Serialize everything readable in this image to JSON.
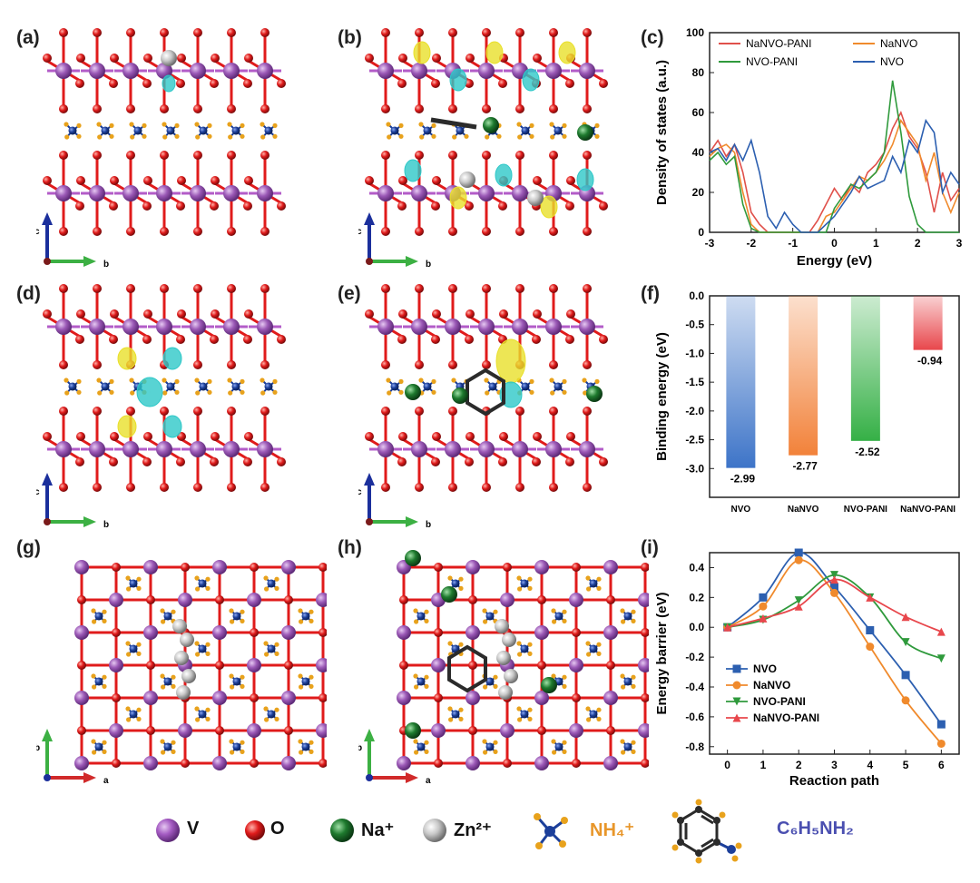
{
  "panels": {
    "a": "(a)",
    "b": "(b)",
    "c": "(c)",
    "d": "(d)",
    "e": "(e)",
    "f": "(f)",
    "g": "(g)",
    "h": "(h)",
    "i": "(i)"
  },
  "axes_labels": {
    "a": "a",
    "b": "b",
    "c": "c"
  },
  "colors": {
    "V": "#9b59b6",
    "O": "#e01b1b",
    "Na": "#1e7a2e",
    "Zn": "#c8c8c8",
    "N": "#1c3f9a",
    "H": "#e8a21c",
    "C": "#2b2b2b",
    "iso_yellow": "#e9e02a",
    "iso_cyan": "#2ec8c8"
  },
  "legend": {
    "items": [
      {
        "symbol": "V",
        "label": "V",
        "icon": "purple-sphere"
      },
      {
        "symbol": "O",
        "label": "O",
        "icon": "red-sphere"
      },
      {
        "symbol": "Na",
        "label": "Na⁺",
        "icon": "green-sphere"
      },
      {
        "symbol": "Zn",
        "label": "Zn²⁺",
        "icon": "grey-sphere"
      }
    ],
    "nh4_label": "NH₄⁺",
    "aniline_label": "C₆H₅NH₂"
  },
  "chart_data": [
    {
      "panel": "c",
      "type": "line",
      "xlabel": "Energy (eV)",
      "ylabel": "Density of states (a.u.)",
      "xlim": [
        -3,
        3
      ],
      "ylim": [
        0,
        100
      ],
      "xticks": [
        "-3",
        "-2",
        "-1",
        "0",
        "1",
        "2",
        "3"
      ],
      "yticks": [
        "0",
        "20",
        "40",
        "60",
        "80",
        "100"
      ],
      "legend_placement": "top",
      "series": [
        {
          "name": "NaNVO-PANI",
          "color": "#e0504a",
          "x": [
            -3,
            -2.8,
            -2.6,
            -2.4,
            -2.2,
            -2.0,
            -1.8,
            -1.6,
            -1.4,
            -1.2,
            -1.0,
            -0.8,
            -0.6,
            -0.4,
            -0.2,
            0,
            0.2,
            0.4,
            0.6,
            0.8,
            1.0,
            1.2,
            1.4,
            1.6,
            1.8,
            2.0,
            2.2,
            2.4,
            2.6,
            2.8,
            3.0
          ],
          "y": [
            40,
            46,
            38,
            44,
            30,
            10,
            4,
            0,
            0,
            0,
            0,
            0,
            0,
            6,
            14,
            22,
            16,
            24,
            20,
            30,
            34,
            40,
            52,
            60,
            48,
            42,
            30,
            10,
            30,
            16,
            22
          ]
        },
        {
          "name": "NaNVO",
          "color": "#f08a2c",
          "x": [
            -3,
            -2.8,
            -2.6,
            -2.4,
            -2.2,
            -2.0,
            -1.8,
            -1.6,
            -1.4,
            -1.2,
            -1.0,
            -0.8,
            -0.6,
            -0.4,
            -0.2,
            0,
            0.2,
            0.4,
            0.6,
            0.8,
            1.0,
            1.2,
            1.4,
            1.6,
            1.8,
            2.0,
            2.2,
            2.4,
            2.6,
            2.8,
            3.0
          ],
          "y": [
            38,
            42,
            44,
            40,
            20,
            4,
            0,
            0,
            0,
            0,
            0,
            0,
            0,
            0,
            8,
            10,
            16,
            22,
            28,
            26,
            30,
            36,
            44,
            56,
            50,
            44,
            26,
            40,
            20,
            10,
            20
          ]
        },
        {
          "name": "NVO-PANI",
          "color": "#2f9a3c",
          "x": [
            -3,
            -2.8,
            -2.6,
            -2.4,
            -2.2,
            -2.0,
            -1.8,
            -1.6,
            -1.4,
            -1.2,
            -1.0,
            -0.8,
            -0.6,
            -0.4,
            -0.2,
            0,
            0.2,
            0.4,
            0.6,
            0.8,
            1.0,
            1.2,
            1.4,
            1.6,
            1.8,
            2.0,
            2.2,
            2.4,
            2.6,
            2.8,
            3.0
          ],
          "y": [
            36,
            40,
            34,
            38,
            14,
            2,
            0,
            0,
            0,
            0,
            0,
            0,
            0,
            0,
            0,
            12,
            18,
            24,
            22,
            26,
            30,
            40,
            76,
            50,
            18,
            4,
            0,
            0,
            0,
            0,
            0
          ]
        },
        {
          "name": "NVO",
          "color": "#2c5fb0",
          "x": [
            -3,
            -2.8,
            -2.6,
            -2.4,
            -2.2,
            -2.0,
            -1.8,
            -1.6,
            -1.4,
            -1.2,
            -1.0,
            -0.8,
            -0.6,
            -0.4,
            -0.2,
            0,
            0.2,
            0.4,
            0.6,
            0.8,
            1.0,
            1.2,
            1.4,
            1.6,
            1.8,
            2.0,
            2.2,
            2.4,
            2.6,
            2.8,
            3.0
          ],
          "y": [
            40,
            42,
            36,
            44,
            36,
            46,
            30,
            8,
            2,
            10,
            4,
            0,
            0,
            0,
            4,
            8,
            14,
            20,
            28,
            22,
            24,
            26,
            38,
            30,
            46,
            40,
            56,
            50,
            20,
            30,
            24
          ]
        }
      ]
    },
    {
      "panel": "f",
      "type": "bar",
      "ylabel": "Binding energy (eV)",
      "ylim": [
        -3.5,
        0
      ],
      "yticks": [
        "0.0",
        "-0.5",
        "-1.0",
        "-1.5",
        "-2.0",
        "-2.5",
        "-3.0"
      ],
      "categories": [
        "NVO",
        "NaNVO",
        "NVO-PANI",
        "NaNVO-PANI"
      ],
      "values": [
        -2.99,
        -2.77,
        -2.52,
        -0.94
      ],
      "value_labels": [
        "-2.99",
        "-2.77",
        "-2.52",
        "-0.94"
      ],
      "colors": [
        "#3d74c8",
        "#f2823a",
        "#35b046",
        "#e8474c"
      ]
    },
    {
      "panel": "i",
      "type": "line",
      "xlabel": "Reaction path",
      "ylabel": "Energy barrier (eV)",
      "xlim": [
        -0.5,
        6.5
      ],
      "ylim": [
        -0.85,
        0.5
      ],
      "xticks": [
        "0",
        "1",
        "2",
        "3",
        "4",
        "5",
        "6"
      ],
      "yticks": [
        "0.4",
        "0.2",
        "0.0",
        "-0.2",
        "-0.4",
        "-0.6",
        "-0.8"
      ],
      "legend_placement": "bottom-left",
      "series": [
        {
          "name": "NVO",
          "color": "#2c5fb0",
          "marker": "square",
          "x": [
            0,
            1,
            2,
            3,
            4,
            5,
            6
          ],
          "y": [
            0.0,
            0.2,
            0.5,
            0.27,
            -0.02,
            -0.32,
            -0.65
          ]
        },
        {
          "name": "NaNVO",
          "color": "#f08a2c",
          "marker": "circle",
          "x": [
            0,
            1,
            2,
            3,
            4,
            5,
            6
          ],
          "y": [
            0.0,
            0.14,
            0.45,
            0.23,
            -0.13,
            -0.49,
            -0.78
          ]
        },
        {
          "name": "NVO-PANI",
          "color": "#2f9a3c",
          "marker": "triangle-down",
          "x": [
            0,
            1,
            2,
            3,
            4,
            5,
            6
          ],
          "y": [
            0.0,
            0.05,
            0.18,
            0.35,
            0.2,
            -0.1,
            -0.21
          ]
        },
        {
          "name": "NaNVO-PANI",
          "color": "#e8474c",
          "marker": "triangle-up",
          "x": [
            0,
            1,
            2,
            3,
            4,
            5,
            6
          ],
          "y": [
            0.0,
            0.06,
            0.14,
            0.32,
            0.2,
            0.07,
            -0.03
          ]
        }
      ]
    }
  ]
}
